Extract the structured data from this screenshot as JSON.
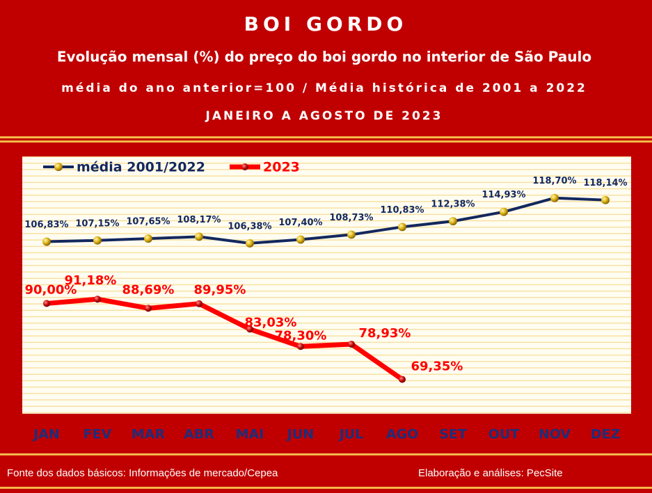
{
  "chart_data": {
    "type": "line",
    "title": "BOI GORDO",
    "subtitle": "Evolução mensal (%) do preço do boi gordo no interior de São Paulo",
    "subtitle_2": "média do ano anterior=100 / Média histórica de 2001 a 2022",
    "period": "JANEIRO A AGOSTO DE 2023",
    "source": "Fonte dos dados básicos: Informações de mercado/Cepea",
    "credit": "Elaboração e análises: PecSite",
    "categories": [
      "JAN",
      "FEV",
      "MAR",
      "ABR",
      "MAI",
      "JUN",
      "JUL",
      "AGO",
      "SET",
      "OUT",
      "NOV",
      "DEZ"
    ],
    "ylim": [
      60,
      130
    ],
    "series": [
      {
        "name": "média 2001/2022",
        "color": "#14285e",
        "values": [
          106.83,
          107.15,
          107.65,
          108.17,
          106.38,
          107.4,
          108.73,
          110.83,
          112.38,
          114.93,
          118.7,
          118.14
        ],
        "value_labels": [
          "106,83%",
          "107,15%",
          "107,65%",
          "108,17%",
          "106,38%",
          "107,40%",
          "108,73%",
          "110,83%",
          "112,38%",
          "114,93%",
          "118,70%",
          "118,14%"
        ]
      },
      {
        "name": "2023",
        "color": "#ff0000",
        "values": [
          90.0,
          91.18,
          88.69,
          89.95,
          83.03,
          78.3,
          78.93,
          69.35,
          null,
          null,
          null,
          null
        ],
        "value_labels": [
          "90,00%",
          "91,18%",
          "88,69%",
          "89,95%",
          "83,03%",
          "78,30%",
          "78,93%",
          "69,35%",
          null,
          null,
          null,
          null
        ]
      }
    ]
  }
}
